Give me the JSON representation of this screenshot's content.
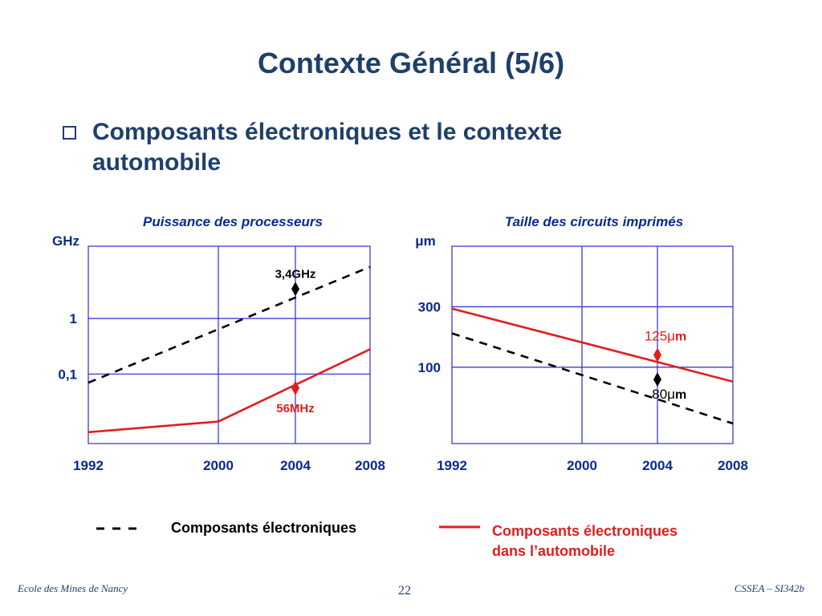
{
  "slide": {
    "title": "Contexte Général (5/6)",
    "bullet": "Composants électroniques et le contexte automobile"
  },
  "legend": {
    "black_label": "Composants électroniques",
    "red_label_line1": "Composants électroniques",
    "red_label_line2": "dans l’automobile"
  },
  "footer": {
    "left": "Ecole des Mines de Nancy",
    "page": "22",
    "right": "CSSEA – SI342b"
  },
  "colors": {
    "title": "#1f3f6b",
    "grid": "#3b3bd6",
    "red": "#e01e1e",
    "black": "#000000",
    "chart_title": "#0a2a8a"
  },
  "chart_data": [
    {
      "type": "line",
      "title": "Puissance des processeurs",
      "ylabel": "GHz",
      "x_ticks": [
        "1992",
        "2000",
        "2004",
        "2008"
      ],
      "y_ticks": [
        "1",
        "0,1"
      ],
      "y_scale": "log",
      "grid": true,
      "series": [
        {
          "name": "Composants électroniques",
          "style": "dashed",
          "color": "#000000",
          "x": [
            1992,
            2008
          ],
          "y": [
            0.07,
            8.5
          ]
        },
        {
          "name": "Composants électroniques dans l’automobile",
          "style": "solid",
          "color": "#e01e1e",
          "x": [
            1992,
            2000,
            2008
          ],
          "y": [
            0.009,
            0.014,
            0.28
          ]
        }
      ],
      "markers": [
        {
          "series": 0,
          "x": 2004,
          "y": 3.4,
          "label": "3,4GHz"
        },
        {
          "series": 1,
          "x": 2004,
          "y": 0.056,
          "label": "56MHz"
        }
      ]
    },
    {
      "type": "line",
      "title": "Taille des circuits imprimés",
      "ylabel": "μm",
      "x_ticks": [
        "1992",
        "2000",
        "2004",
        "2008"
      ],
      "y_ticks": [
        "300",
        "100"
      ],
      "y_scale": "log",
      "grid": true,
      "series": [
        {
          "name": "Composants électroniques",
          "style": "dashed",
          "color": "#000000",
          "x": [
            1992,
            2008
          ],
          "y": [
            185,
            36
          ]
        },
        {
          "name": "Composants électroniques dans l’automobile",
          "style": "solid",
          "color": "#e01e1e",
          "x": [
            1992,
            2008
          ],
          "y": [
            290,
            77
          ]
        }
      ],
      "markers": [
        {
          "series": 1,
          "x": 2004,
          "y": 125,
          "label_num": "125μ",
          "label_unit": "m"
        },
        {
          "series": 0,
          "x": 2004,
          "y": 80,
          "label_num": "80μ",
          "label_unit": "m"
        }
      ]
    }
  ]
}
